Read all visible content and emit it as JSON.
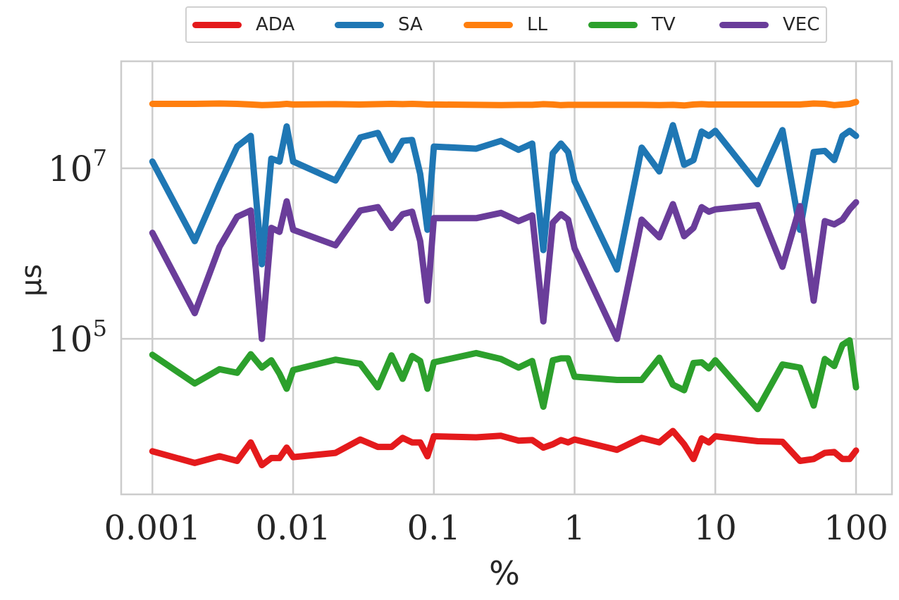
{
  "chart_data": {
    "type": "line",
    "xscale": "log",
    "yscale": "log",
    "xlabel": "%",
    "ylabel": "µs",
    "xlim": [
      0.0006,
      180
    ],
    "ylim": [
      1500,
      180000000
    ],
    "xticks": [
      {
        "value": 0.001,
        "label": "0.001"
      },
      {
        "value": 0.01,
        "label": "0.01"
      },
      {
        "value": 0.1,
        "label": "0.1"
      },
      {
        "value": 1,
        "label": "1"
      },
      {
        "value": 10,
        "label": "10"
      },
      {
        "value": 100,
        "label": "100"
      }
    ],
    "yticks": [
      {
        "value": 10000000,
        "base": "10",
        "exp": "7"
      },
      {
        "value": 100000,
        "base": "10",
        "exp": "5"
      }
    ],
    "grid": true,
    "legend_position": "top-center",
    "x": [
      0.001,
      0.002,
      0.003,
      0.004,
      0.005,
      0.006,
      0.007,
      0.008,
      0.009,
      0.01,
      0.02,
      0.03,
      0.04,
      0.05,
      0.06,
      0.07,
      0.08,
      0.09,
      0.1,
      0.2,
      0.3,
      0.4,
      0.5,
      0.6,
      0.7,
      0.8,
      0.9,
      1,
      2,
      3,
      4,
      5,
      6,
      7,
      8,
      9,
      10,
      20,
      30,
      40,
      50,
      60,
      70,
      80,
      90,
      100
    ],
    "series": [
      {
        "name": "ADA",
        "color": "#e41a1c",
        "values": [
          4800,
          3500,
          4200,
          3700,
          6100,
          3300,
          4000,
          4000,
          5300,
          4100,
          4600,
          6600,
          5400,
          5400,
          6900,
          6100,
          6100,
          4200,
          7200,
          7000,
          7300,
          6400,
          6500,
          5300,
          5800,
          6500,
          6100,
          6600,
          5000,
          6900,
          6100,
          8300,
          5800,
          3900,
          6800,
          6100,
          7200,
          6300,
          6200,
          3700,
          3900,
          4600,
          4700,
          3900,
          3900,
          4900
        ]
      },
      {
        "name": "SA",
        "color": "#1f77b4",
        "values": [
          12000000,
          1400000,
          6500000,
          18000000,
          24000000,
          750000,
          13000000,
          12000000,
          31000000,
          12000000,
          7200000,
          23000000,
          26000000,
          12500000,
          21000000,
          21500000,
          8600000,
          1900000,
          18000000,
          17000000,
          21000000,
          16500000,
          19500000,
          1100000,
          15000000,
          19500000,
          15500000,
          7100000,
          650000,
          17500000,
          9200000,
          32000000,
          11000000,
          12500000,
          27000000,
          24000000,
          27500000,
          6500000,
          28000000,
          1900000,
          15500000,
          16000000,
          12500000,
          24000000,
          27500000,
          24000000
        ]
      },
      {
        "name": "LL",
        "color": "#ff7f0e",
        "values": [
          57000000,
          57000000,
          57500000,
          57000000,
          56000000,
          55000000,
          55500000,
          56000000,
          57000000,
          56000000,
          56500000,
          56000000,
          56500000,
          57000000,
          56500000,
          57000000,
          56500000,
          56000000,
          56000000,
          55500000,
          55000000,
          55500000,
          55500000,
          56500000,
          56000000,
          55000000,
          55500000,
          55500000,
          55500000,
          55500000,
          55000000,
          55500000,
          54500000,
          56000000,
          56500000,
          56000000,
          56000000,
          56000000,
          56000000,
          56000000,
          57500000,
          57000000,
          55000000,
          56000000,
          57000000,
          60000000
        ]
      },
      {
        "name": "TV",
        "color": "#2ca02c",
        "values": [
          65000,
          30000,
          44000,
          40000,
          66000,
          46000,
          56000,
          39000,
          26000,
          43000,
          57000,
          51000,
          27000,
          64000,
          34000,
          63000,
          55000,
          26000,
          53000,
          68000,
          58000,
          46000,
          55000,
          16000,
          56000,
          59000,
          59000,
          36000,
          33000,
          33000,
          60000,
          29000,
          25000,
          52000,
          53000,
          45000,
          56000,
          15000,
          50000,
          46000,
          16500,
          58000,
          48000,
          85000,
          96000,
          27000
        ]
      },
      {
        "name": "VEC",
        "color": "#6a3d9a",
        "values": [
          1750000,
          200000,
          1200000,
          2700000,
          3200000,
          100000,
          2000000,
          1800000,
          4100000,
          1900000,
          1250000,
          3200000,
          3500000,
          2000000,
          2900000,
          3100000,
          1400000,
          280000,
          2600000,
          2600000,
          3000000,
          2400000,
          2800000,
          160000,
          2300000,
          2900000,
          2500000,
          1150000,
          100000,
          2500000,
          1550000,
          3800000,
          1600000,
          2000000,
          3500000,
          3100000,
          3300000,
          3700000,
          700000,
          3600000,
          280000,
          2400000,
          2200000,
          2500000,
          3300000,
          4000000
        ]
      }
    ]
  }
}
